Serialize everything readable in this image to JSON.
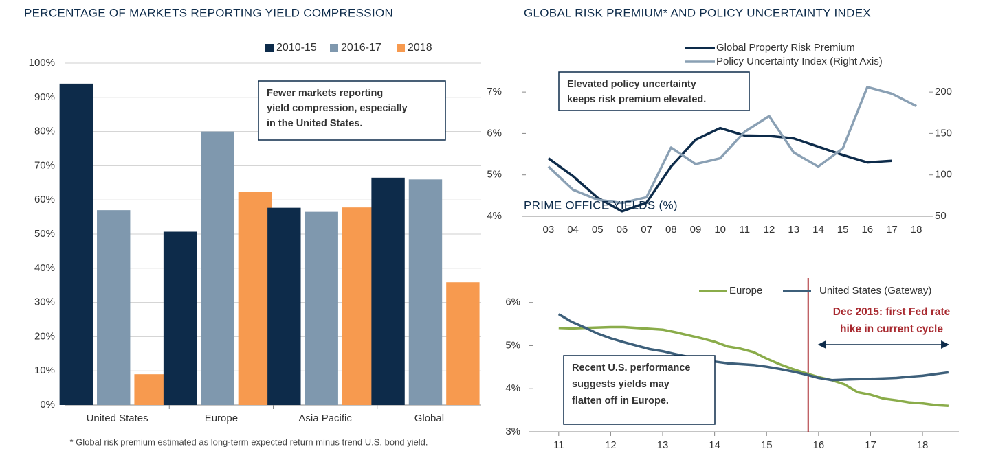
{
  "chart_data": [
    {
      "type": "bar",
      "title": "PERCENTAGE OF MARKETS REPORTING YIELD COMPRESSION",
      "categories": [
        "United States",
        "Europe",
        "Asia Pacific",
        "Global"
      ],
      "series": [
        {
          "name": "2010-15",
          "color": "#0d2b4a",
          "values": [
            94,
            50.7,
            57.7,
            66.5
          ]
        },
        {
          "name": "2016-17",
          "color": "#7f98ae",
          "values": [
            57,
            80,
            56.5,
            66
          ]
        },
        {
          "name": "2018",
          "color": "#f79a4f",
          "values": [
            9,
            62.4,
            57.8,
            35.9
          ]
        }
      ],
      "ylim": [
        0,
        100
      ],
      "yticks": [
        {
          "value": 0,
          "label": "0%"
        },
        {
          "value": 10,
          "label": "10%"
        },
        {
          "value": 20,
          "label": "20%"
        },
        {
          "value": 30,
          "label": "30%"
        },
        {
          "value": 40,
          "label": "40%"
        },
        {
          "value": 50,
          "label": "50%"
        },
        {
          "value": 60,
          "label": "60%"
        },
        {
          "value": 70,
          "label": "70%"
        },
        {
          "value": 80,
          "label": "80%"
        },
        {
          "value": 90,
          "label": "90%"
        },
        {
          "value": 100,
          "label": "100%"
        }
      ],
      "grid": true,
      "legend": "top-right",
      "annotation": [
        "Fewer markets reporting",
        "yield compression, especially",
        "in the United States."
      ]
    },
    {
      "type": "line",
      "title": "GLOBAL RISK PREMIUM* AND POLICY UNCERTAINTY INDEX",
      "categories": [
        "03",
        "04",
        "05",
        "06",
        "07",
        "08",
        "09",
        "10",
        "11",
        "12",
        "13",
        "14",
        "15",
        "16",
        "17",
        "18"
      ],
      "series": [
        {
          "name": "Global Property Risk Premium",
          "color": "#0d2b4a",
          "values": [
            5.4,
            4.97,
            4.45,
            4.12,
            4.33,
            5.2,
            5.85,
            6.13,
            5.95,
            5.94,
            5.88,
            5.68,
            5.48,
            5.3,
            5.34,
            null
          ]
        },
        {
          "name": "Policy Uncertainty Index (Right Axis)",
          "color": "#8aa0b4",
          "axis": "y2",
          "values": [
            110,
            82,
            70,
            66,
            73,
            133,
            113,
            120,
            152,
            171,
            127,
            110,
            132,
            206,
            198,
            183
          ]
        }
      ],
      "ylim": [
        4,
        7.4
      ],
      "yticks": [
        {
          "value": 4,
          "label": "4%"
        },
        {
          "value": 5,
          "label": "5%"
        },
        {
          "value": 6,
          "label": "6%"
        },
        {
          "value": 7,
          "label": "7%"
        }
      ],
      "y2lim": [
        50,
        220
      ],
      "y2ticks": [
        50,
        100,
        150,
        200
      ],
      "grid": false,
      "legend": "top",
      "annotation": [
        "Elevated policy uncertainty",
        "keeps risk premium elevated."
      ]
    },
    {
      "type": "line",
      "title": "PRIME OFFICE YIELDS (%)",
      "x": [
        11,
        11.25,
        11.5,
        11.75,
        12,
        12.25,
        12.5,
        12.75,
        13,
        13.25,
        13.5,
        13.75,
        14,
        14.25,
        14.5,
        14.75,
        15,
        15.25,
        15.5,
        15.75,
        16,
        16.25,
        16.5,
        16.75,
        17,
        17.25,
        17.5,
        17.75,
        18,
        18.25,
        18.5
      ],
      "series": [
        {
          "name": "Europe",
          "color": "#8aac4a",
          "values": [
            5.41,
            5.4,
            5.41,
            5.42,
            5.43,
            5.43,
            5.41,
            5.39,
            5.37,
            5.31,
            5.24,
            5.17,
            5.09,
            4.98,
            4.93,
            4.85,
            4.7,
            4.57,
            4.46,
            4.36,
            4.27,
            4.2,
            4.1,
            3.92,
            3.86,
            3.77,
            3.73,
            3.68,
            3.66,
            3.62,
            3.6
          ]
        },
        {
          "name": "United States (Gateway)",
          "color": "#3d5f7a",
          "values": [
            5.73,
            5.55,
            5.42,
            5.28,
            5.17,
            5.08,
            5,
            4.92,
            4.87,
            4.8,
            4.74,
            4.69,
            4.63,
            4.59,
            4.57,
            4.55,
            4.51,
            4.46,
            4.4,
            4.33,
            4.25,
            4.2,
            4.21,
            4.22,
            4.23,
            4.24,
            4.25,
            4.28,
            4.3,
            4.34,
            4.38
          ]
        }
      ],
      "xlim": [
        10.5,
        18.7
      ],
      "xticks": [
        11,
        12,
        13,
        14,
        15,
        16,
        17,
        18
      ],
      "ylim": [
        3,
        6.25
      ],
      "yticks": [
        {
          "value": 3,
          "label": "3%"
        },
        {
          "value": 4,
          "label": "4%"
        },
        {
          "value": 5,
          "label": "5%"
        },
        {
          "value": 6,
          "label": "6%"
        }
      ],
      "grid": false,
      "legend": "top-right",
      "vline": {
        "x": 15.8,
        "color": "#a8292f",
        "label": [
          "Dec 2015: first Fed rate",
          "hike in current cycle"
        ]
      },
      "arrow": [
        16,
        18.5
      ],
      "annotation": [
        "Recent U.S. performance",
        "suggests yields may",
        "flatten off in Europe."
      ]
    }
  ],
  "footnote": "* Global risk premium estimated as long-term expected return minus trend U.S. bond yield."
}
